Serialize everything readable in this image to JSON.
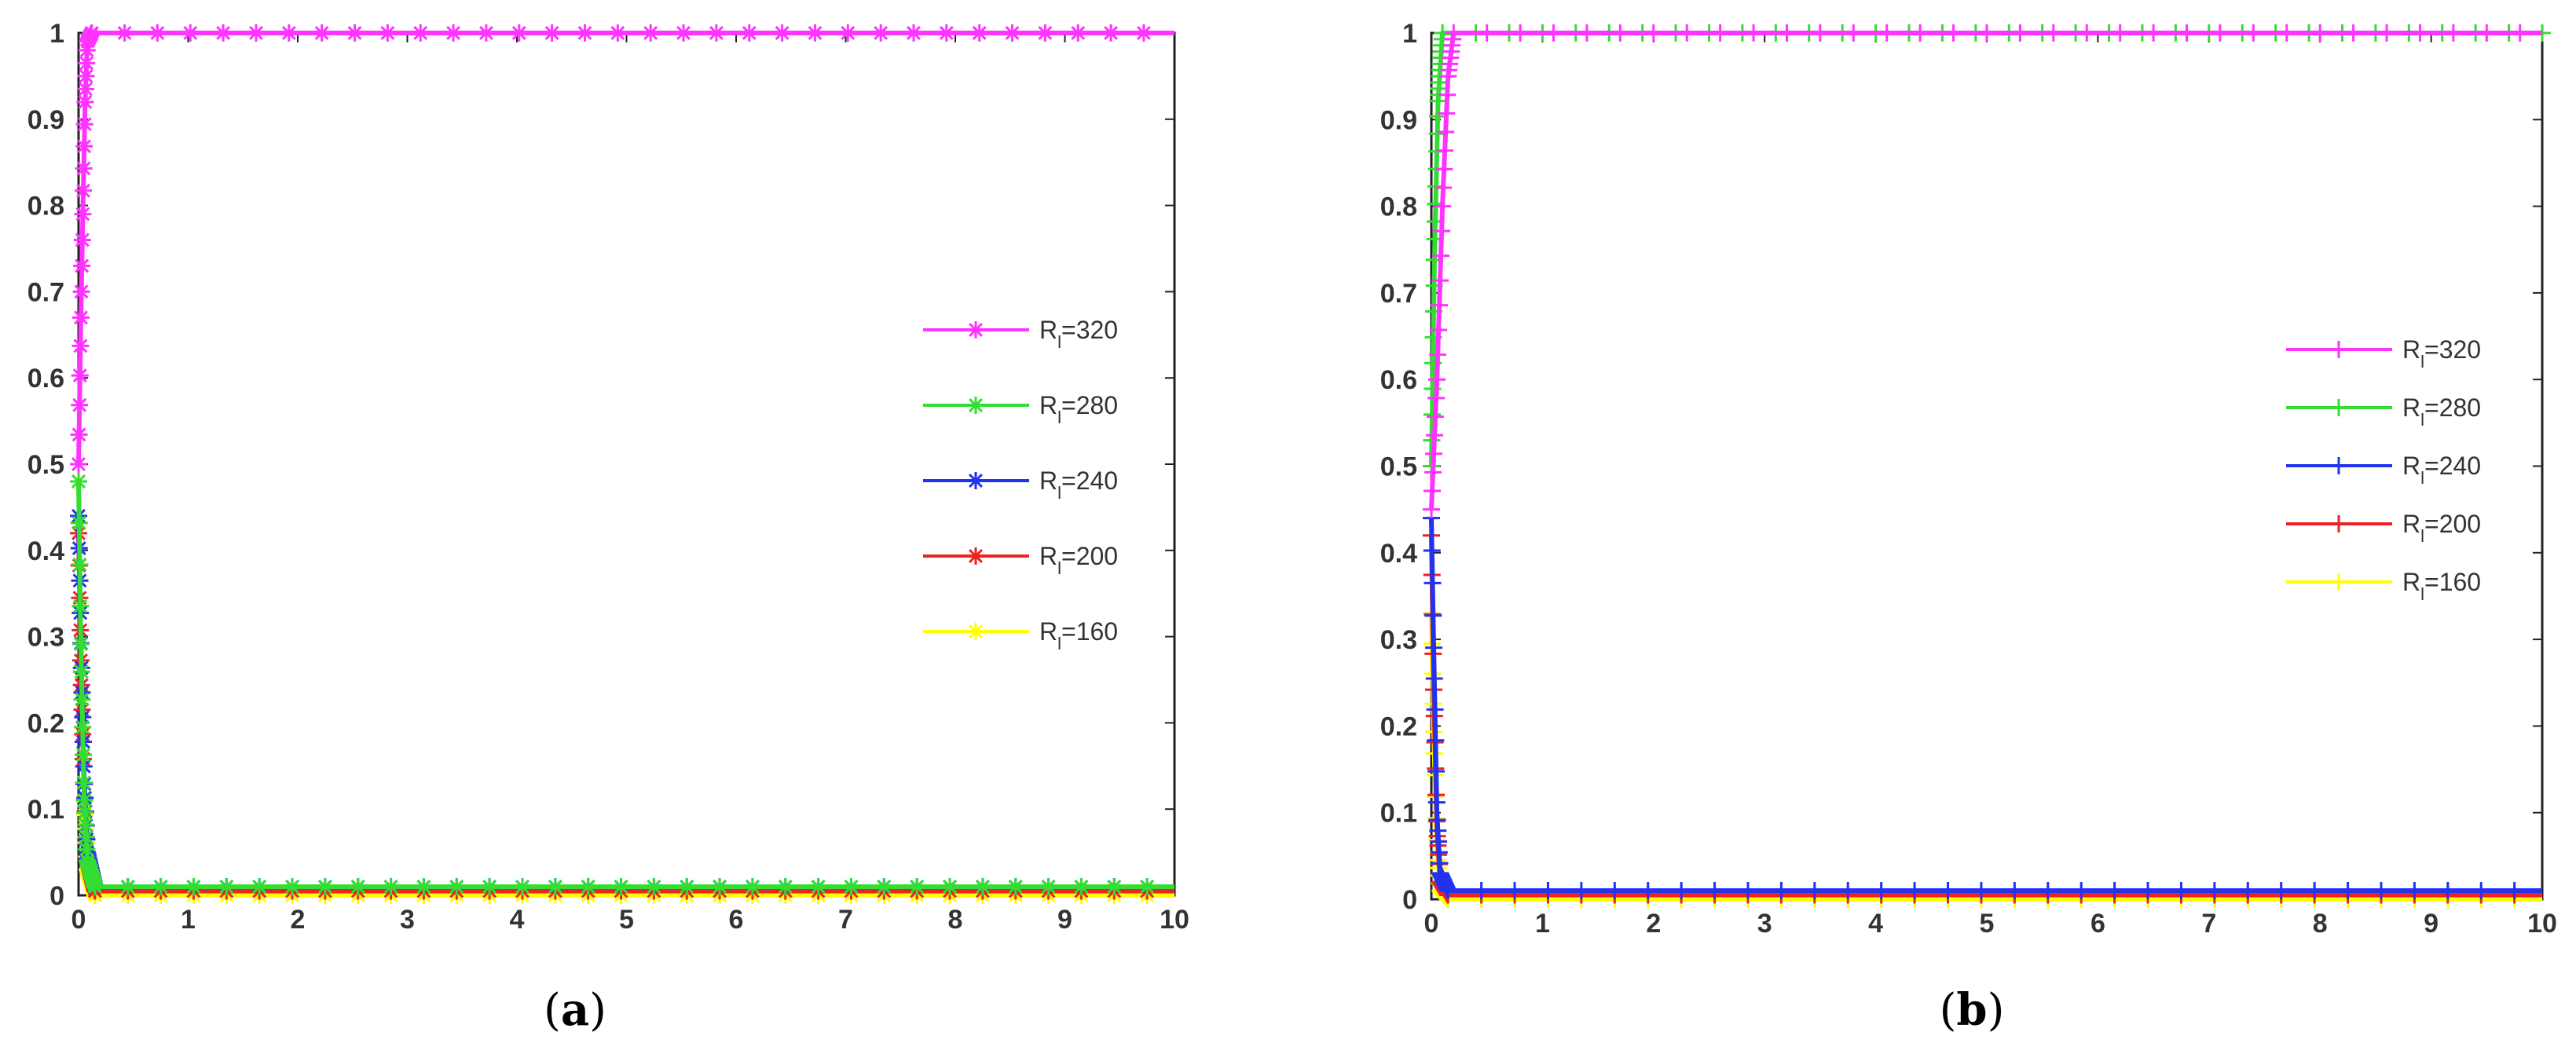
{
  "figure": {
    "panels": [
      {
        "caption_letter": "a"
      },
      {
        "caption_letter": "b"
      }
    ]
  },
  "chart_data": [
    {
      "type": "line",
      "marker": "asterisk",
      "title": "",
      "xlabel": "",
      "ylabel": "",
      "xlim": [
        0,
        10
      ],
      "ylim": [
        0,
        1
      ],
      "xticks": [
        "0",
        "1",
        "2",
        "3",
        "4",
        "5",
        "6",
        "7",
        "8",
        "9",
        "10"
      ],
      "yticks": [
        "0",
        "0.1",
        "0.2",
        "0.3",
        "0.4",
        "0.5",
        "0.6",
        "0.7",
        "0.8",
        "0.9",
        "1"
      ],
      "grid": false,
      "legend_position": "right",
      "series": [
        {
          "name": "R",
          "subscript": "l",
          "value_text": "=320",
          "color": "#ff33ff",
          "points": [
            [
              0,
              0.5
            ],
            [
              0.02,
              0.66
            ],
            [
              0.04,
              0.8
            ],
            [
              0.06,
              0.92
            ],
            [
              0.08,
              0.99
            ],
            [
              0.12,
              1.0
            ],
            [
              10,
              1.0
            ]
          ]
        },
        {
          "name": "R",
          "subscript": "l",
          "value_text": "=280",
          "color": "#33dd33",
          "points": [
            [
              0,
              0.48
            ],
            [
              0.02,
              0.3
            ],
            [
              0.05,
              0.12
            ],
            [
              0.08,
              0.04
            ],
            [
              0.15,
              0.01
            ],
            [
              10,
              0.01
            ]
          ]
        },
        {
          "name": "R",
          "subscript": "l",
          "value_text": "=240",
          "color": "#2233ee",
          "points": [
            [
              0,
              0.44
            ],
            [
              0.02,
              0.3
            ],
            [
              0.05,
              0.14
            ],
            [
              0.08,
              0.05
            ],
            [
              0.15,
              0.01
            ],
            [
              10,
              0.01
            ]
          ]
        },
        {
          "name": "R",
          "subscript": "l",
          "value_text": "=200",
          "color": "#ee2222",
          "points": [
            [
              0,
              0.42
            ],
            [
              0.02,
              0.28
            ],
            [
              0.05,
              0.12
            ],
            [
              0.08,
              0.04
            ],
            [
              0.15,
              0.005
            ],
            [
              10,
              0.005
            ]
          ]
        },
        {
          "name": "R",
          "subscript": "l",
          "value_text": "=160",
          "color": "#ffff00",
          "points": [
            [
              0,
              0.48
            ],
            [
              0.02,
              0.3
            ],
            [
              0.05,
              0.12
            ],
            [
              0.08,
              0.03
            ],
            [
              0.15,
              0.0
            ],
            [
              10,
              0.0
            ]
          ]
        }
      ]
    },
    {
      "type": "line",
      "marker": "plus",
      "title": "",
      "xlabel": "",
      "ylabel": "",
      "xlim": [
        0,
        10
      ],
      "ylim": [
        0,
        1
      ],
      "xticks": [
        "0",
        "1",
        "2",
        "3",
        "4",
        "5",
        "6",
        "7",
        "8",
        "9",
        "10"
      ],
      "yticks": [
        "0",
        "0.1",
        "0.2",
        "0.3",
        "0.4",
        "0.5",
        "0.6",
        "0.7",
        "0.8",
        "0.9",
        "1"
      ],
      "grid": false,
      "legend_position": "right",
      "series": [
        {
          "name": "R",
          "subscript": "l",
          "value_text": "=320",
          "color": "#ff33ff",
          "points": [
            [
              0,
              0.45
            ],
            [
              0.05,
              0.6
            ],
            [
              0.1,
              0.8
            ],
            [
              0.15,
              0.95
            ],
            [
              0.2,
              1.0
            ],
            [
              10,
              1.0
            ]
          ]
        },
        {
          "name": "R",
          "subscript": "l",
          "value_text": "=280",
          "color": "#33dd33",
          "points": [
            [
              0,
              0.5
            ],
            [
              0.03,
              0.75
            ],
            [
              0.06,
              0.92
            ],
            [
              0.1,
              1.0
            ],
            [
              10,
              1.0
            ]
          ]
        },
        {
          "name": "R",
          "subscript": "l",
          "value_text": "=240",
          "color": "#2233ee",
          "points": [
            [
              0,
              0.44
            ],
            [
              0.02,
              0.3
            ],
            [
              0.05,
              0.1
            ],
            [
              0.08,
              0.03
            ],
            [
              0.15,
              0.01
            ],
            [
              10,
              0.01
            ]
          ]
        },
        {
          "name": "R",
          "subscript": "l",
          "value_text": "=200",
          "color": "#ee2222",
          "points": [
            [
              0,
              0.42
            ],
            [
              0.02,
              0.25
            ],
            [
              0.05,
              0.08
            ],
            [
              0.08,
              0.02
            ],
            [
              0.15,
              0.005
            ],
            [
              10,
              0.005
            ]
          ]
        },
        {
          "name": "R",
          "subscript": "l",
          "value_text": "=160",
          "color": "#ffff00",
          "points": [
            [
              0,
              0.33
            ],
            [
              0.02,
              0.2
            ],
            [
              0.05,
              0.06
            ],
            [
              0.08,
              0.01
            ],
            [
              0.15,
              0.0
            ],
            [
              10,
              0.0
            ]
          ]
        }
      ]
    }
  ]
}
